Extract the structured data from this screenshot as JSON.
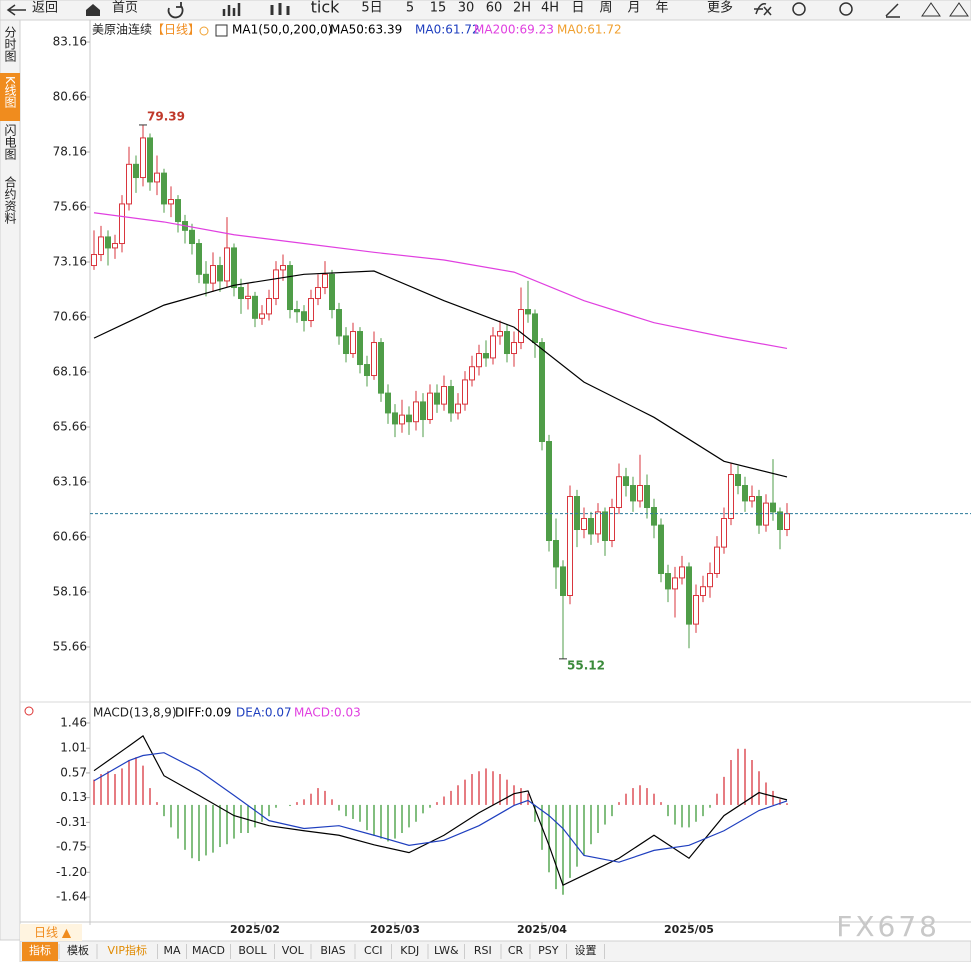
{
  "toolbar": [
    "返回",
    "首页",
    "tick",
    "5日",
    "5",
    "15",
    "30",
    "60",
    "2H",
    "4H",
    "日",
    "周",
    "月",
    "年",
    "更多"
  ],
  "sidebar": [
    "分时图",
    "K线图",
    "闪电图",
    "合约资料"
  ],
  "chart_data": [
    {
      "type": "candlestick",
      "title": "美原油连续",
      "period": "【日线】",
      "legend": [
        {
          "text": "MA1(50,0,200,0)",
          "color": "#000000"
        },
        {
          "text": "MA50:63.39",
          "color": "#000000"
        },
        {
          "text": "MA0:61.72",
          "color": "#1f3fbf"
        },
        {
          "text": "MA200:69.23",
          "color": "#e040e0"
        },
        {
          "text": "MA0:61.72",
          "color": "#f0a030"
        }
      ],
      "up_color": "#d9363e",
      "down_color": "#4f9d48",
      "open": [
        73.0,
        73.5,
        74.3,
        73.8,
        74.0,
        75.8,
        77.6,
        77.0,
        78.8,
        76.8,
        77.2,
        75.8,
        76.0,
        75.0,
        74.6,
        74.0,
        72.6,
        72.2,
        73.0,
        72.3,
        73.8,
        72.0,
        71.5,
        71.6,
        70.6,
        70.8,
        71.5,
        72.8,
        73.0,
        71.0,
        70.9,
        70.5,
        71.5,
        72.0,
        72.6,
        71.0,
        69.8,
        69.0,
        70.0,
        68.5,
        68.0,
        69.5,
        67.2,
        66.3,
        65.8,
        66.2,
        65.9,
        66.8,
        66.0,
        67.2,
        66.7,
        67.5,
        66.3,
        66.7,
        67.8,
        68.4,
        69.0,
        68.8,
        69.8,
        70.0,
        69.0,
        69.5,
        71.0,
        70.8,
        69.5,
        65.0,
        60.5,
        59.3,
        58.0,
        62.5,
        61.0,
        61.5,
        60.8,
        61.8,
        60.5,
        62.0,
        63.4,
        63.0,
        62.3,
        63.0,
        62.0,
        61.2,
        59.0,
        58.3,
        58.8,
        59.3,
        56.7,
        58.0,
        58.4,
        59.0,
        60.2,
        61.5,
        63.5,
        63.0,
        62.3,
        62.5,
        61.2,
        62.2,
        61.8,
        61.0
      ],
      "high": [
        74.6,
        74.8,
        74.6,
        74.4,
        76.2,
        78.4,
        78.0,
        79.39,
        79.0,
        78.0,
        77.4,
        76.6,
        76.2,
        75.3,
        74.9,
        74.2,
        73.2,
        73.6,
        73.4,
        75.2,
        74.0,
        72.4,
        72.2,
        71.8,
        71.2,
        71.9,
        73.2,
        73.5,
        73.2,
        71.4,
        71.2,
        71.9,
        72.6,
        73.2,
        72.8,
        71.3,
        70.2,
        70.4,
        70.2,
        68.9,
        70.0,
        69.7,
        67.6,
        66.7,
        66.9,
        66.6,
        67.3,
        67.2,
        67.6,
        67.6,
        68.0,
        67.8,
        67.2,
        68.2,
        68.9,
        69.4,
        69.6,
        70.2,
        70.5,
        70.3,
        70.0,
        72.0,
        72.3,
        71.0,
        69.7,
        65.3,
        61.5,
        59.6,
        63.0,
        62.8,
        62.0,
        61.8,
        62.2,
        62.0,
        62.4,
        64.0,
        63.8,
        63.4,
        64.4,
        63.5,
        62.4,
        61.5,
        59.4,
        59.3,
        59.8,
        59.5,
        58.5,
        58.9,
        59.5,
        60.7,
        62.0,
        64.0,
        63.9,
        63.4,
        63.0,
        62.8,
        62.6,
        64.2,
        62.0,
        62.2
      ],
      "low": [
        72.8,
        73.2,
        73.0,
        73.3,
        73.6,
        75.5,
        76.3,
        76.6,
        76.4,
        76.2,
        75.4,
        75.2,
        74.5,
        74.0,
        73.5,
        72.2,
        71.6,
        71.8,
        71.8,
        72.0,
        71.6,
        70.8,
        71.0,
        70.2,
        70.3,
        70.5,
        71.2,
        72.3,
        70.6,
        70.4,
        70.0,
        70.2,
        71.2,
        71.7,
        70.6,
        69.4,
        68.6,
        68.8,
        68.1,
        67.5,
        67.8,
        66.8,
        65.8,
        65.2,
        65.4,
        65.3,
        65.5,
        65.2,
        65.8,
        66.3,
        66.4,
        65.9,
        66.0,
        66.4,
        67.5,
        68.0,
        68.4,
        68.5,
        69.4,
        68.6,
        68.4,
        69.2,
        70.4,
        68.8,
        64.6,
        60.0,
        58.3,
        55.12,
        57.6,
        60.2,
        60.6,
        60.3,
        60.4,
        59.8,
        60.2,
        61.7,
        62.5,
        61.8,
        62.0,
        61.5,
        60.6,
        58.6,
        57.7,
        57.0,
        58.5,
        55.6,
        56.3,
        57.7,
        57.9,
        58.8,
        59.9,
        61.2,
        62.6,
        61.8,
        62.0,
        60.8,
        60.9,
        61.4,
        60.1,
        60.7
      ],
      "close": [
        73.5,
        74.3,
        73.8,
        74.0,
        75.8,
        77.6,
        77.0,
        78.8,
        76.8,
        77.2,
        75.8,
        76.0,
        75.0,
        74.6,
        74.0,
        72.6,
        72.2,
        73.0,
        72.3,
        73.8,
        72.0,
        71.5,
        71.6,
        70.6,
        70.8,
        71.5,
        72.8,
        73.0,
        71.0,
        70.9,
        70.5,
        71.5,
        72.0,
        72.6,
        71.0,
        69.8,
        69.0,
        70.0,
        68.5,
        68.0,
        69.5,
        67.2,
        66.3,
        65.8,
        66.2,
        65.9,
        66.8,
        66.0,
        67.2,
        66.7,
        67.5,
        66.3,
        66.7,
        67.8,
        68.4,
        69.0,
        68.8,
        69.8,
        70.0,
        69.0,
        69.5,
        71.0,
        70.8,
        69.5,
        65.0,
        60.5,
        59.3,
        58.0,
        62.5,
        61.0,
        61.5,
        60.8,
        61.8,
        60.5,
        62.0,
        63.4,
        63.0,
        62.3,
        63.0,
        62.0,
        61.2,
        59.0,
        58.3,
        58.8,
        59.3,
        56.7,
        58.0,
        58.4,
        59.0,
        60.2,
        61.5,
        63.5,
        63.0,
        62.3,
        62.5,
        61.2,
        62.2,
        61.8,
        61.0,
        61.72
      ],
      "series": [
        {
          "name": "MA50",
          "color": "#000000",
          "x": [
            0,
            10,
            20,
            30,
            40,
            50,
            60,
            70,
            80,
            90,
            99
          ],
          "values": [
            69.7,
            71.2,
            72.1,
            72.6,
            72.75,
            71.4,
            70.2,
            67.7,
            66.1,
            64.1,
            63.39
          ]
        },
        {
          "name": "MA200",
          "color": "#e040e0",
          "x": [
            0,
            10,
            20,
            30,
            40,
            50,
            60,
            70,
            80,
            90,
            99
          ],
          "values": [
            75.4,
            74.98,
            74.4,
            74.0,
            73.6,
            73.25,
            72.7,
            71.4,
            70.4,
            69.75,
            69.23
          ]
        }
      ],
      "ylim": [
        53.25,
        84.07
      ],
      "yticks": [
        83.16,
        80.66,
        78.16,
        75.66,
        73.16,
        70.66,
        68.16,
        65.66,
        63.16,
        60.66,
        58.16,
        55.66
      ],
      "xticks": [
        {
          "value": 23,
          "label": "2025/02"
        },
        {
          "value": 43,
          "label": "2025/03"
        },
        {
          "value": 64,
          "label": "2025/04"
        },
        {
          "value": 85,
          "label": "2025/05"
        }
      ]
    },
    {
      "type": "macd",
      "title": "MACD(13,8,9)",
      "legend": [
        {
          "text": "DIFF:0.09",
          "color": "#000000"
        },
        {
          "text": "DEA:0.07",
          "color": "#1f3fbf"
        },
        {
          "text": "MACD:0.03",
          "color": "#e040e0"
        }
      ],
      "up_color": "#d9363e",
      "down_color": "#3f9a3a",
      "values": [
        0.45,
        0.55,
        0.6,
        0.55,
        0.65,
        0.8,
        0.85,
        0.7,
        0.3,
        0.05,
        -0.2,
        -0.4,
        -0.6,
        -0.8,
        -0.95,
        -1.0,
        -0.9,
        -0.85,
        -0.75,
        -0.7,
        -0.6,
        -0.5,
        -0.5,
        -0.4,
        -0.3,
        -0.2,
        -0.05,
        0.0,
        -0.02,
        0.05,
        0.1,
        0.2,
        0.3,
        0.25,
        0.1,
        -0.1,
        -0.2,
        -0.25,
        -0.3,
        -0.45,
        -0.55,
        -0.6,
        -0.65,
        -0.6,
        -0.5,
        -0.4,
        -0.3,
        -0.15,
        -0.05,
        0.05,
        0.15,
        0.25,
        0.35,
        0.45,
        0.55,
        0.6,
        0.65,
        0.6,
        0.55,
        0.45,
        0.35,
        0.3,
        0.2,
        -0.3,
        -0.8,
        -1.2,
        -1.5,
        -1.6,
        -1.3,
        -1.1,
        -0.9,
        -0.7,
        -0.5,
        -0.35,
        -0.2,
        0.05,
        0.2,
        0.3,
        0.35,
        0.3,
        0.2,
        0.05,
        -0.2,
        -0.35,
        -0.4,
        -0.4,
        -0.3,
        -0.2,
        -0.05,
        0.2,
        0.5,
        0.8,
        1.0,
        1.0,
        0.8,
        0.6,
        0.4,
        0.25,
        0.1,
        0.03
      ],
      "series": [
        {
          "name": "DIFF",
          "color": "#000000",
          "x": [
            0,
            5,
            7,
            10,
            15,
            20,
            25,
            30,
            35,
            40,
            45,
            50,
            55,
            60,
            62,
            65,
            67,
            70,
            75,
            80,
            85,
            90,
            95,
            99
          ],
          "values": [
            0.61,
            1.05,
            1.23,
            0.52,
            0.17,
            -0.19,
            -0.37,
            -0.46,
            -0.54,
            -0.71,
            -0.85,
            -0.54,
            -0.14,
            0.2,
            0.25,
            -0.72,
            -1.43,
            -1.25,
            -0.95,
            -0.54,
            -0.95,
            -0.19,
            0.22,
            0.09
          ]
        },
        {
          "name": "DEA",
          "color": "#1f3fbf",
          "x": [
            0,
            5,
            7,
            10,
            15,
            20,
            25,
            30,
            35,
            40,
            45,
            50,
            55,
            60,
            62,
            65,
            67,
            70,
            75,
            80,
            85,
            90,
            95,
            99
          ],
          "values": [
            0.43,
            0.79,
            0.88,
            0.93,
            0.61,
            0.17,
            -0.28,
            -0.42,
            -0.37,
            -0.54,
            -0.72,
            -0.63,
            -0.37,
            -0.01,
            0.08,
            -0.19,
            -0.42,
            -0.9,
            -1.02,
            -0.81,
            -0.72,
            -0.46,
            -0.1,
            0.07
          ]
        }
      ],
      "ylim": [
        -2.05,
        1.78
      ],
      "yticks": [
        1.46,
        1.01,
        0.57,
        0.13,
        -0.31,
        -0.75,
        {
          "value": -1.2,
          "label": "-1.20"
        },
        -1.64
      ]
    }
  ],
  "footer": {
    "period": "日线 ▲",
    "tabs": [
      "指标",
      "模板",
      "VIP指标",
      "MA",
      "MACD",
      "BOLL",
      "VOL",
      "BIAS",
      "CCI",
      "KDJ",
      "LW&",
      "RSI",
      "CR",
      "PSY",
      "设置"
    ],
    "watermark": "FX678"
  }
}
